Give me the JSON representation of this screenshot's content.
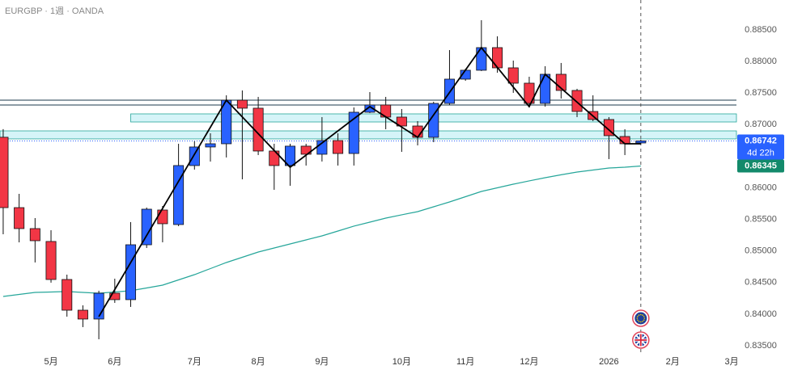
{
  "chart_data": {
    "type": "candlestick",
    "title": "EURGBP · 1週 · OANDA",
    "open": [
      0.868,
      0.85686,
      0.85354,
      0.8515,
      0.84548,
      0.84062,
      0.83922,
      0.84331,
      0.84229,
      0.85098,
      0.85648,
      0.85418,
      0.86352,
      0.86646,
      0.86697,
      0.87387,
      0.8726,
      0.86582,
      0.86352,
      0.86659,
      0.86531,
      0.86748,
      0.86543,
      0.87196,
      0.87311,
      0.87119,
      0.86978,
      0.86799,
      0.87336,
      0.8772,
      0.87861,
      0.88219,
      0.87899,
      0.87656,
      0.87336,
      0.87797,
      0.87541,
      0.87208,
      0.87081,
      0.86812,
      0.8671
    ],
    "high": [
      0.86928,
      0.85904,
      0.8552,
      0.85328,
      0.84625,
      0.84139,
      0.8437,
      0.84561,
      0.85457,
      0.85687,
      0.85712,
      0.86697,
      0.86735,
      0.86863,
      0.87464,
      0.87541,
      0.87439,
      0.86697,
      0.86697,
      0.86697,
      0.87119,
      0.86863,
      0.87272,
      0.87515,
      0.87439,
      0.87247,
      0.87055,
      0.87362,
      0.8818,
      0.87886,
      0.88653,
      0.88398,
      0.88014,
      0.87758,
      0.87925,
      0.87976,
      0.87567,
      0.87464,
      0.87119,
      0.86927,
      0.8676
    ],
    "low": [
      0.85264,
      0.85136,
      0.84818,
      0.84498,
      0.8396,
      0.83794,
      0.83602,
      0.84178,
      0.84114,
      0.85047,
      0.85137,
      0.85393,
      0.86288,
      0.86416,
      0.8648,
      0.86134,
      0.86518,
      0.85968,
      0.86032,
      0.86352,
      0.86416,
      0.86352,
      0.86352,
      0.87183,
      0.86927,
      0.86569,
      0.86671,
      0.86722,
      0.87311,
      0.87694,
      0.87848,
      0.87822,
      0.87503,
      0.87285,
      0.87285,
      0.87413,
      0.87119,
      0.87055,
      0.86454,
      0.86518,
      0.8669
    ],
    "close": [
      0.85686,
      0.85354,
      0.85162,
      0.84548,
      0.84062,
      0.83922,
      0.84331,
      0.84229,
      0.85098,
      0.85661,
      0.85431,
      0.86352,
      0.86646,
      0.86697,
      0.87387,
      0.8726,
      0.86582,
      0.86352,
      0.86659,
      0.86531,
      0.86748,
      0.86543,
      0.87196,
      0.87311,
      0.87119,
      0.86978,
      0.86799,
      0.87336,
      0.8772,
      0.87861,
      0.88219,
      0.87899,
      0.87656,
      0.87336,
      0.87797,
      0.87541,
      0.87208,
      0.87081,
      0.86825,
      0.86697,
      0.86742
    ],
    "up_color": "#2962ff",
    "down_color": "#f23645",
    "ma_values": [
      0.8428,
      0.84312,
      0.84344,
      0.8435,
      0.84357,
      0.84344,
      0.84331,
      0.8435,
      0.8437,
      0.84414,
      0.84459,
      0.84542,
      0.84625,
      0.84721,
      0.84817,
      0.849,
      0.84983,
      0.85047,
      0.85111,
      0.85175,
      0.85239,
      0.85316,
      0.85393,
      0.85456,
      0.8552,
      0.85572,
      0.85623,
      0.85699,
      0.85776,
      0.85859,
      0.85942,
      0.86,
      0.86057,
      0.86109,
      0.8616,
      0.86205,
      0.86249,
      0.86281,
      0.86313,
      0.86326,
      0.86345
    ],
    "ma_color": "#26a69a",
    "zigzag": {
      "x": [
        6,
        14,
        18,
        23,
        26,
        30,
        33,
        34,
        39,
        40
      ],
      "values": [
        0.8396,
        0.87387,
        0.86326,
        0.87285,
        0.86799,
        0.88219,
        0.87285,
        0.87797,
        0.86697,
        0.86697
      ],
      "color": "#000000"
    },
    "lines": [
      0.87387,
      0.87311
    ],
    "zones": [
      {
        "from": 0.8717,
        "to": 0.87042,
        "start": 8
      },
      {
        "from": 0.86901,
        "to": 0.86774,
        "start": -0.2
      }
    ],
    "countdown": "4d 22h",
    "ylim": [
      0.83346,
      0.88973
    ],
    "yticks": [
      {
        "value": 0.835,
        "label": "0.83500"
      },
      {
        "value": 0.84,
        "label": "0.84000"
      },
      {
        "value": 0.845,
        "label": "0.84500"
      },
      {
        "value": 0.85,
        "label": "0.85000"
      },
      {
        "value": 0.855,
        "label": "0.85500"
      },
      {
        "value": 0.86,
        "label": "0.86000"
      },
      {
        "value": 0.865,
        "label": "0.86500"
      },
      {
        "value": 0.87,
        "label": "0.87000"
      },
      {
        "value": 0.875,
        "label": "0.87500"
      },
      {
        "value": 0.88,
        "label": "0.88000"
      },
      {
        "value": 0.885,
        "label": "0.88500"
      }
    ],
    "xlim": [
      -0.2,
      46
    ],
    "xticks": [
      {
        "value": 3,
        "label": "5月"
      },
      {
        "value": 7,
        "label": "6月"
      },
      {
        "value": 12,
        "label": "7月"
      },
      {
        "value": 16,
        "label": "8月"
      },
      {
        "value": 20,
        "label": "9月"
      },
      {
        "value": 25,
        "label": "10月"
      },
      {
        "value": 29,
        "label": "11月"
      },
      {
        "value": 33,
        "label": "12月"
      },
      {
        "value": 38,
        "label": "2026"
      },
      {
        "value": 42,
        "label": "2月"
      },
      {
        "value": 45.7,
        "label": "3月"
      }
    ],
    "grid": false
  }
}
